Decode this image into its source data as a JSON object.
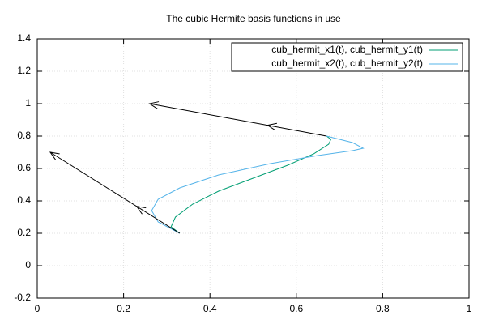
{
  "chart_data": {
    "type": "line",
    "title": "The cubic Hermite basis functions in use",
    "series": [
      {
        "name": "cub_hermit_x1(t), cub_hermit_y1(t)",
        "color": "#009e73",
        "x": [
          0.33,
          0.31,
          0.32,
          0.36,
          0.42,
          0.5,
          0.58,
          0.64,
          0.675,
          0.68,
          0.67
        ],
        "values": [
          0.2,
          0.24,
          0.3,
          0.38,
          0.46,
          0.54,
          0.62,
          0.69,
          0.75,
          0.78,
          0.8
        ]
      },
      {
        "name": "cub_hermit_x2(t), cub_hermit_y2(t)",
        "color": "#56b4e9",
        "x": [
          0.33,
          0.28,
          0.265,
          0.28,
          0.33,
          0.42,
          0.54,
          0.65,
          0.73,
          0.755,
          0.73,
          0.67
        ],
        "values": [
          0.2,
          0.27,
          0.34,
          0.41,
          0.48,
          0.56,
          0.63,
          0.68,
          0.71,
          0.725,
          0.76,
          0.8
        ]
      }
    ],
    "arrows": [
      {
        "from": [
          0.33,
          0.2
        ],
        "to": [
          0.03,
          0.7
        ]
      },
      {
        "from": [
          0.67,
          0.8
        ],
        "to": [
          0.26,
          1.0
        ]
      }
    ],
    "xlim": [
      0,
      1
    ],
    "xticks": [
      0,
      0.2,
      0.4,
      0.6,
      0.8,
      1
    ],
    "ylim": [
      -0.2,
      1.4
    ],
    "yticks": [
      -0.2,
      0,
      0.2,
      0.4,
      0.6,
      0.8,
      1,
      1.2,
      1.4
    ],
    "grid": true,
    "legend": "top-right"
  }
}
